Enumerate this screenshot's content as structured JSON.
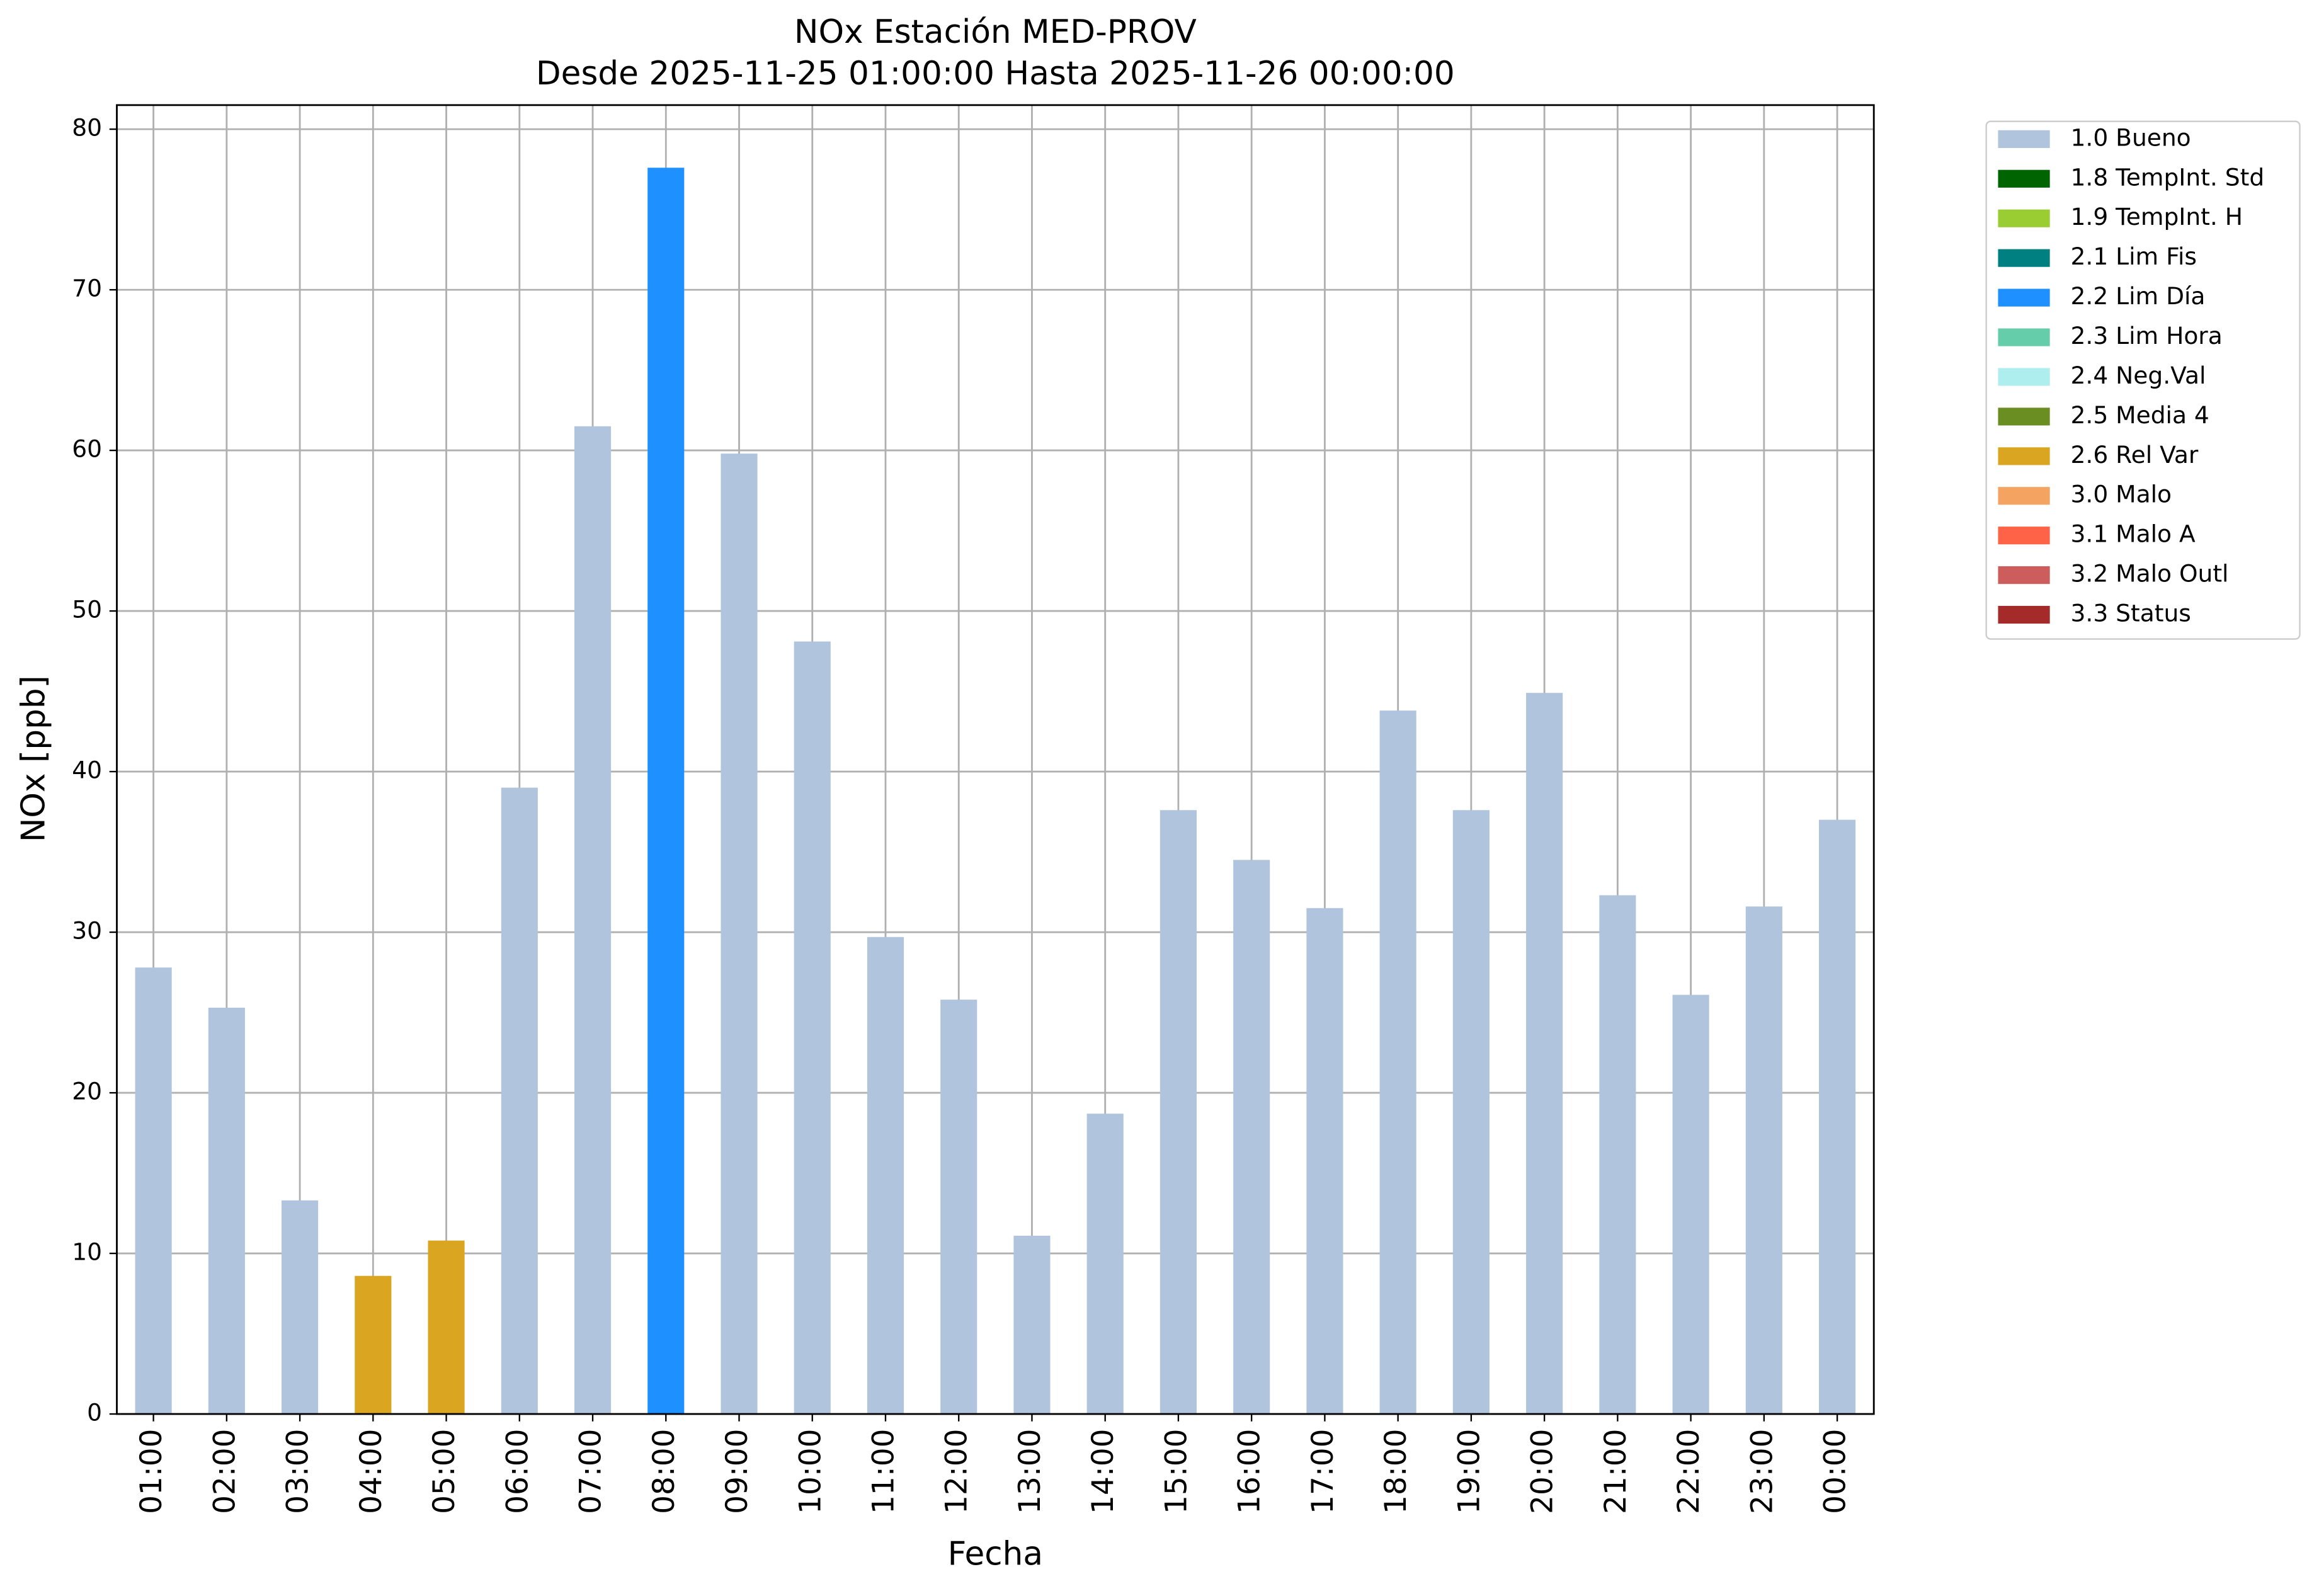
{
  "chart_data": {
    "type": "stacked-bar",
    "title": "NOx Estación MED-PROV",
    "subtitle": "Desde 2025-11-25 01:00:00 Hasta 2025-11-26 00:00:00",
    "x_label": "Fecha",
    "y_label": "NOx [ppb]",
    "categories": [
      "01:00",
      "02:00",
      "03:00",
      "04:00",
      "05:00",
      "06:00",
      "07:00",
      "08:00",
      "09:00",
      "10:00",
      "11:00",
      "12:00",
      "13:00",
      "14:00",
      "15:00",
      "16:00",
      "17:00",
      "18:00",
      "19:00",
      "20:00",
      "21:00",
      "22:00",
      "23:00",
      "00:00"
    ],
    "ylim": [
      0,
      81.5
    ],
    "yticks": [
      0,
      10,
      20,
      30,
      40,
      50,
      60,
      70,
      80
    ],
    "grid": true,
    "legend": "outside-upper-right",
    "series": [
      {
        "name": "1.0 Bueno",
        "color": "#b0c4de",
        "values": [
          27.8,
          25.3,
          13.3,
          null,
          null,
          39.0,
          61.5,
          null,
          59.8,
          48.1,
          29.7,
          25.8,
          11.1,
          18.7,
          37.6,
          34.5,
          31.5,
          43.8,
          37.6,
          44.9,
          32.3,
          26.1,
          31.6,
          37.0
        ]
      },
      {
        "name": "1.8 TempInt. Std",
        "color": "#006400",
        "values": [
          null,
          null,
          null,
          null,
          null,
          null,
          null,
          null,
          null,
          null,
          null,
          null,
          null,
          null,
          null,
          null,
          null,
          null,
          null,
          null,
          null,
          null,
          null,
          null
        ]
      },
      {
        "name": "1.9 TempInt. H",
        "color": "#9acd32",
        "values": [
          null,
          null,
          null,
          null,
          null,
          null,
          null,
          null,
          null,
          null,
          null,
          null,
          null,
          null,
          null,
          null,
          null,
          null,
          null,
          null,
          null,
          null,
          null,
          null
        ]
      },
      {
        "name": "2.1 Lim Fis",
        "color": "#008080",
        "values": [
          null,
          null,
          null,
          null,
          null,
          null,
          null,
          null,
          null,
          null,
          null,
          null,
          null,
          null,
          null,
          null,
          null,
          null,
          null,
          null,
          null,
          null,
          null,
          null
        ]
      },
      {
        "name": "2.2 Lim Día",
        "color": "#1e90ff",
        "values": [
          null,
          null,
          null,
          null,
          null,
          null,
          null,
          77.6,
          null,
          null,
          null,
          null,
          null,
          null,
          null,
          null,
          null,
          null,
          null,
          null,
          null,
          null,
          null,
          null
        ]
      },
      {
        "name": "2.3 Lim Hora",
        "color": "#66cdaa",
        "values": [
          null,
          null,
          null,
          null,
          null,
          null,
          null,
          null,
          null,
          null,
          null,
          null,
          null,
          null,
          null,
          null,
          null,
          null,
          null,
          null,
          null,
          null,
          null,
          null
        ]
      },
      {
        "name": "2.4 Neg.Val",
        "color": "#afeeee",
        "values": [
          null,
          null,
          null,
          null,
          null,
          null,
          null,
          null,
          null,
          null,
          null,
          null,
          null,
          null,
          null,
          null,
          null,
          null,
          null,
          null,
          null,
          null,
          null,
          null
        ]
      },
      {
        "name": "2.5 Media 4",
        "color": "#6b8e23",
        "values": [
          null,
          null,
          null,
          null,
          null,
          null,
          null,
          null,
          null,
          null,
          null,
          null,
          null,
          null,
          null,
          null,
          null,
          null,
          null,
          null,
          null,
          null,
          null,
          null
        ]
      },
      {
        "name": "2.6 Rel Var",
        "color": "#daa520",
        "values": [
          null,
          null,
          null,
          8.6,
          10.8,
          null,
          null,
          null,
          null,
          null,
          null,
          null,
          null,
          null,
          null,
          null,
          null,
          null,
          null,
          null,
          null,
          null,
          null,
          null
        ]
      },
      {
        "name": "3.0 Malo",
        "color": "#f4a460",
        "values": [
          null,
          null,
          null,
          null,
          null,
          null,
          null,
          null,
          null,
          null,
          null,
          null,
          null,
          null,
          null,
          null,
          null,
          null,
          null,
          null,
          null,
          null,
          null,
          null
        ]
      },
      {
        "name": "3.1 Malo A",
        "color": "#ff6347",
        "values": [
          null,
          null,
          null,
          null,
          null,
          null,
          null,
          null,
          null,
          null,
          null,
          null,
          null,
          null,
          null,
          null,
          null,
          null,
          null,
          null,
          null,
          null,
          null,
          null
        ]
      },
      {
        "name": "3.2 Malo Outl",
        "color": "#cd5c5c",
        "values": [
          null,
          null,
          null,
          null,
          null,
          null,
          null,
          null,
          null,
          null,
          null,
          null,
          null,
          null,
          null,
          null,
          null,
          null,
          null,
          null,
          null,
          null,
          null,
          null
        ]
      },
      {
        "name": "3.3 Status",
        "color": "#a52a2a",
        "values": [
          null,
          null,
          null,
          null,
          null,
          null,
          null,
          null,
          null,
          null,
          null,
          null,
          null,
          null,
          null,
          null,
          null,
          null,
          null,
          null,
          null,
          null,
          null,
          null
        ]
      }
    ]
  }
}
